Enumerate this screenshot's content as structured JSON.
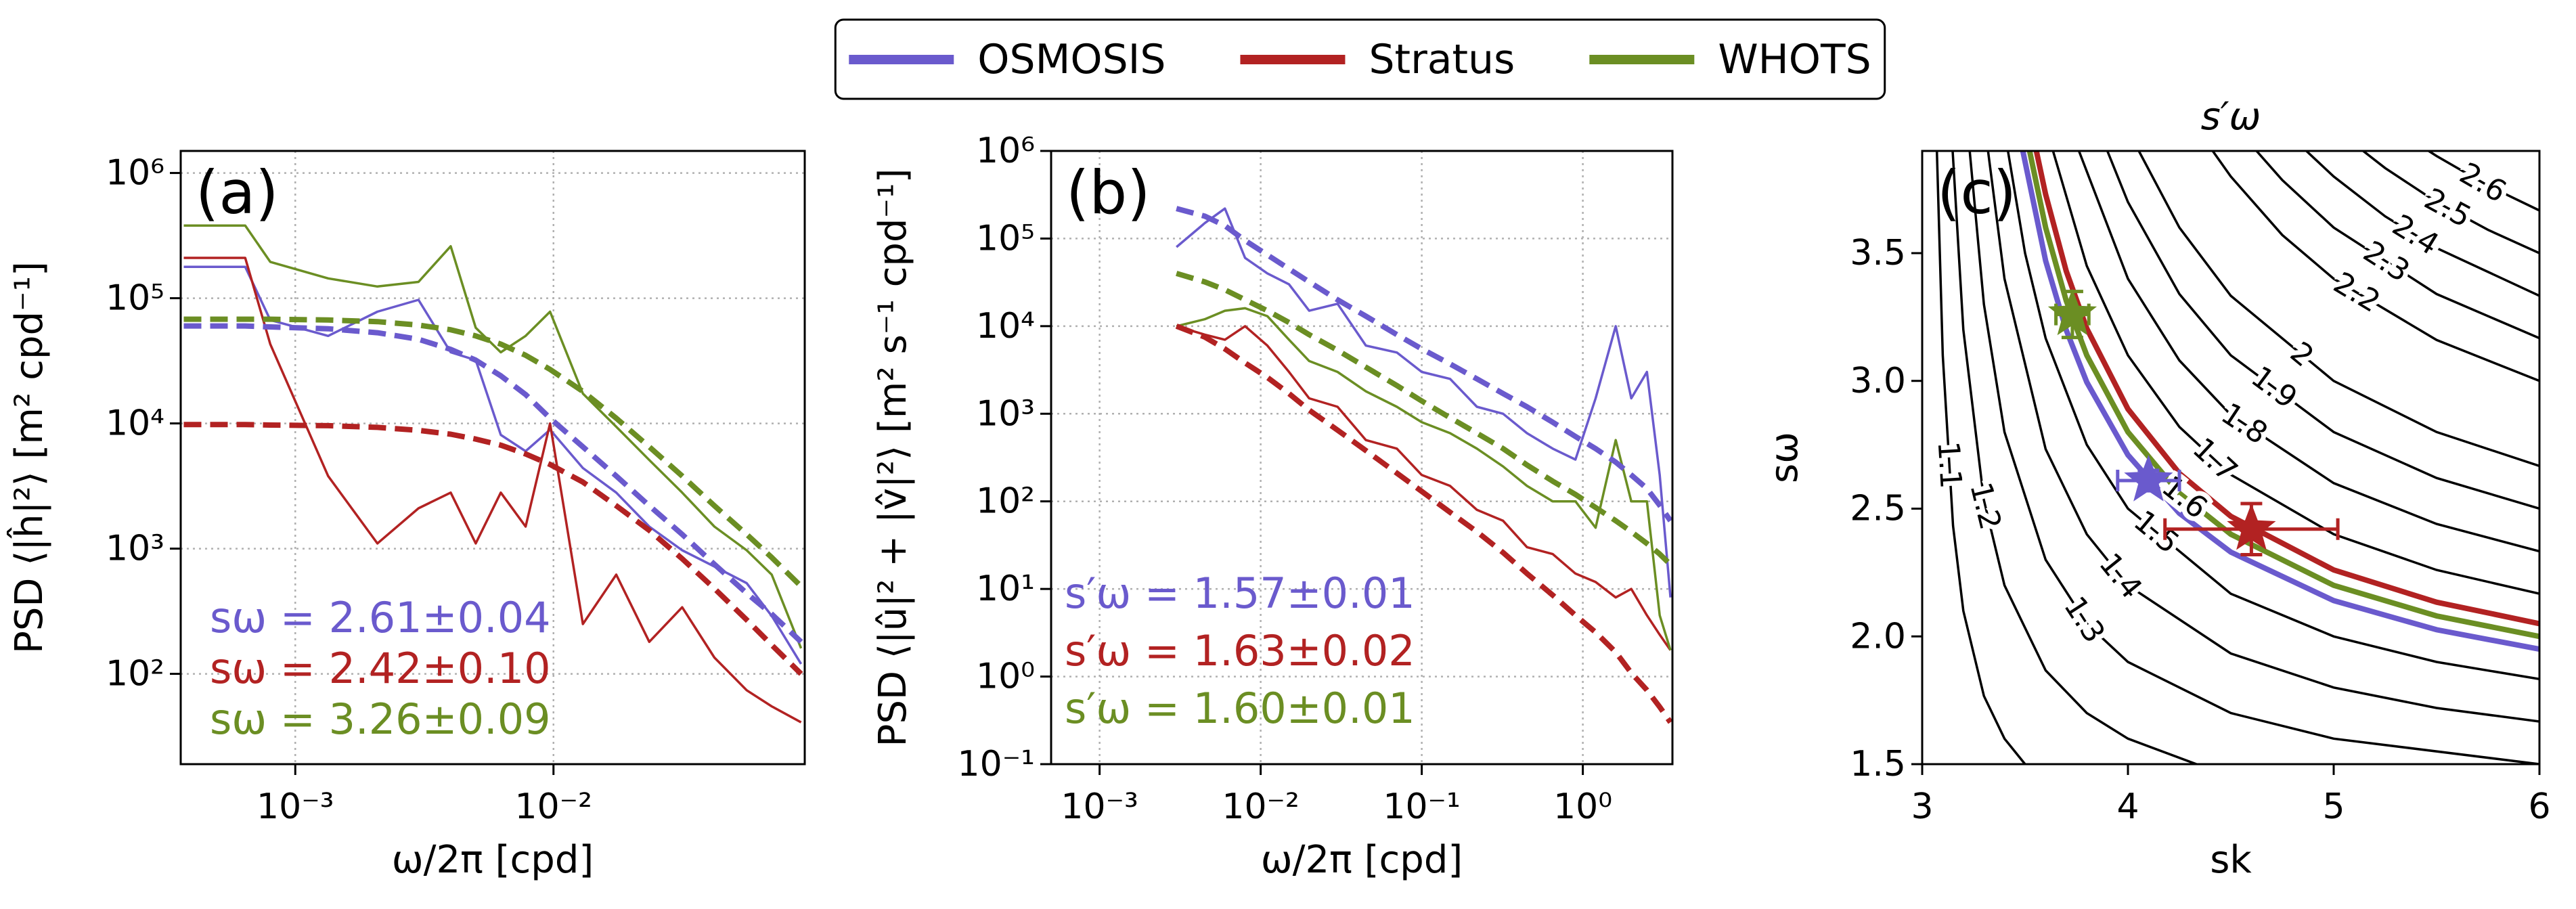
{
  "chart_data": [
    {
      "type": "line",
      "panel_label": "(a)",
      "x_label": "ω/2π [cpd]",
      "y_label": "PSD ⟨|ĥ|²⟩ [m² cpd⁻¹]",
      "xlog": true,
      "ylog": true,
      "grid": true,
      "legend": "upper center",
      "xlim": [
        0.00036,
        0.094
      ],
      "ylim": [
        19,
        1500000
      ],
      "xticks": [
        {
          "value": 0.001,
          "label": "10⁻³"
        },
        {
          "value": 0.01,
          "label": "10⁻²"
        }
      ],
      "yticks": [
        {
          "value": 100,
          "label": "10²"
        },
        {
          "value": 1000,
          "label": "10³"
        },
        {
          "value": 10000,
          "label": "10⁴"
        },
        {
          "value": 100000,
          "label": "10⁵"
        },
        {
          "value": 1000000,
          "label": "10⁶"
        }
      ],
      "x": [
        0.00037,
        0.00064,
        0.0008,
        0.00134,
        0.00208,
        0.003,
        0.004,
        0.005,
        0.00625,
        0.0078,
        0.0097,
        0.013,
        0.0175,
        0.0235,
        0.0315,
        0.042,
        0.056,
        0.07,
        0.091
      ],
      "series": [
        {
          "name": "OSMOSIS",
          "color": "#6a5acd",
          "style": "solid",
          "values": [
            178000.0,
            178000.0,
            67000.0,
            50000.0,
            78000.0,
            97000.0,
            37000.0,
            32000.0,
            8100.0,
            6000.0,
            8900.0,
            4400.0,
            2800.0,
            1500.0,
            970,
            720,
            530,
            290,
            120
          ]
        },
        {
          "name": "Stratus",
          "color": "#b22222",
          "style": "solid",
          "values": [
            210000.0,
            210000.0,
            43000.0,
            3800.0,
            1100.0,
            2100.0,
            2800.0,
            1100.0,
            2800.0,
            1500.0,
            10000.0,
            250,
            620,
            180,
            340,
            135,
            74,
            55,
            41
          ]
        },
        {
          "name": "WHOTS",
          "color": "#6b8e23",
          "style": "solid",
          "values": [
            380000.0,
            380000.0,
            195000.0,
            144000.0,
            124000.0,
            135000.0,
            260000.0,
            58000.0,
            37000.0,
            50000.0,
            78000.0,
            17300.0,
            9400.0,
            5100.0,
            2800.0,
            1500.0,
            970,
            620,
            160
          ]
        },
        {
          "color": "#6a5acd",
          "style": "dashed",
          "values": [
            60000.0,
            60000.0,
            59000.0,
            57000.0,
            53000.0,
            47000.0,
            39000.0,
            32000.0,
            24000.0,
            17000.0,
            11000.0,
            6500.0,
            3800.0,
            2200.0,
            1300.0,
            750,
            440,
            300,
            180
          ]
        },
        {
          "color": "#b22222",
          "style": "dashed",
          "values": [
            9800.0,
            9800.0,
            9700.0,
            9600.0,
            9300.0,
            8800.0,
            8200.0,
            7500.0,
            6700.0,
            5700.0,
            4700.0,
            3400.0,
            2200.0,
            1400.0,
            830,
            480,
            270,
            170,
            100
          ]
        },
        {
          "color": "#6b8e23",
          "style": "dashed",
          "values": [
            68000.0,
            68000.0,
            68000.0,
            67000.0,
            65000.0,
            61000.0,
            56000.0,
            50000.0,
            43000.0,
            35000.0,
            27000.0,
            18000.0,
            11000.0,
            6500.0,
            3800.0,
            2200.0,
            1300.0,
            850,
            500
          ]
        }
      ],
      "annotations": [
        {
          "text": "sω = 2.61±0.04",
          "color": "#6a5acd"
        },
        {
          "text": "sω = 2.42±0.10",
          "color": "#b22222"
        },
        {
          "text": "sω = 3.26±0.09",
          "color": "#6b8e23"
        }
      ]
    },
    {
      "type": "line",
      "panel_label": "(b)",
      "x_label": "ω/2π [cpd]",
      "y_label": "PSD ⟨|û|² + |v̂|²⟩ [m² s⁻¹ cpd⁻¹]",
      "xlog": true,
      "ylog": true,
      "grid": true,
      "xlim": [
        0.0005,
        3.6
      ],
      "ylim": [
        0.1,
        1000000
      ],
      "xticks": [
        {
          "value": 0.001,
          "label": "10⁻³"
        },
        {
          "value": 0.01,
          "label": "10⁻²"
        },
        {
          "value": 0.1,
          "label": "10⁻¹"
        },
        {
          "value": 1,
          "label": "10⁰"
        }
      ],
      "yticks": [
        {
          "value": 0.1,
          "label": "10⁻¹"
        },
        {
          "value": 1,
          "label": "10⁰"
        },
        {
          "value": 10,
          "label": "10¹"
        },
        {
          "value": 100,
          "label": "10²"
        },
        {
          "value": 1000,
          "label": "10³"
        },
        {
          "value": 10000,
          "label": "10⁴"
        },
        {
          "value": 100000,
          "label": "10⁵"
        },
        {
          "value": 1000000,
          "label": "10⁶"
        }
      ],
      "x": [
        0.003,
        0.0045,
        0.006,
        0.008,
        0.011,
        0.015,
        0.02,
        0.03,
        0.045,
        0.07,
        0.1,
        0.15,
        0.22,
        0.32,
        0.45,
        0.65,
        0.9,
        1.2,
        1.6,
        2.0,
        2.5,
        3.0,
        3.5
      ],
      "series": [
        {
          "color": "#6a5acd",
          "style": "solid",
          "values": [
            80000.0,
            150000.0,
            220000.0,
            60000.0,
            40000.0,
            30000.0,
            15000.0,
            18000.0,
            6000.0,
            5000.0,
            3000.0,
            2500.0,
            1200.0,
            1000.0,
            600,
            400,
            300,
            1500.0,
            10000.0,
            1500.0,
            3000.0,
            200,
            8
          ]
        },
        {
          "color": "#b22222",
          "style": "solid",
          "values": [
            10000.0,
            8000.0,
            7000.0,
            10000.0,
            6000.0,
            3000.0,
            1500.0,
            1200.0,
            500,
            400,
            200,
            150,
            80,
            60,
            30,
            25,
            15,
            12,
            8,
            10,
            5,
            3,
            2
          ]
        },
        {
          "color": "#6b8e23",
          "style": "solid",
          "values": [
            10000.0,
            12000.0,
            15000.0,
            16000.0,
            13000.0,
            7000.0,
            4000.0,
            3000.0,
            1800.0,
            1200.0,
            800,
            600,
            400,
            250,
            150,
            100,
            100,
            50,
            500,
            100,
            100,
            5,
            2
          ]
        },
        {
          "color": "#6a5acd",
          "style": "dashed",
          "values": [
            220000.0,
            180000.0,
            140000.0,
            95000.0,
            65000.0,
            45000.0,
            32000.0,
            20000.0,
            13000.0,
            8000.0,
            5500.0,
            3700.0,
            2500.0,
            1700.0,
            1200.0,
            800,
            550,
            400,
            280,
            200,
            140,
            90,
            60
          ]
        },
        {
          "color": "#b22222",
          "style": "dashed",
          "values": [
            10000.0,
            7500.0,
            5500.0,
            3800.0,
            2600.0,
            1700.0,
            1100.0,
            650,
            380,
            210,
            130,
            75,
            45,
            26,
            15,
            8.5,
            5,
            3.2,
            1.9,
            1.1,
            0.7,
            0.45,
            0.3
          ]
        },
        {
          "color": "#6b8e23",
          "style": "dashed",
          "values": [
            40000.0,
            32000.0,
            26000.0,
            20000.0,
            15000.0,
            11000.0,
            8000.0,
            5300.0,
            3400.0,
            2100.0,
            1400.0,
            900,
            600,
            400,
            260,
            170,
            120,
            85,
            60,
            45,
            33,
            25,
            19
          ]
        }
      ],
      "annotations": [
        {
          "text": "s′ω = 1.57±0.01",
          "color": "#6a5acd"
        },
        {
          "text": "s′ω = 1.63±0.02",
          "color": "#b22222"
        },
        {
          "text": "s′ω = 1.60±0.01",
          "color": "#6b8e23"
        }
      ]
    },
    {
      "type": "contour",
      "panel_label": "(c)",
      "title": "s′ω",
      "x_label": "sk",
      "y_label": "sω",
      "xlim": [
        3,
        6
      ],
      "ylim": [
        1.5,
        3.9
      ],
      "xticks": [
        3,
        4,
        5,
        6
      ],
      "yticks": [
        1.5,
        {
          "value": 2,
          "label": "2.0"
        },
        2.5,
        {
          "value": 3,
          "label": "3.0"
        },
        3.5
      ],
      "contours": [
        {
          "level": 1.1,
          "x": [
            3.0714,
            3.1,
            3.15,
            3.2,
            3.3,
            3.4,
            3.5
          ],
          "y": [
            3.9,
            3.1,
            2.433,
            2.1,
            1.767,
            1.6,
            1.5
          ]
        },
        {
          "level": 1.2,
          "x": [
            3.148,
            3.2,
            3.3,
            3.4,
            3.6,
            3.8,
            4.0,
            4.333
          ],
          "y": [
            3.9,
            3.2,
            2.533,
            2.2,
            1.867,
            1.7,
            1.6,
            1.5
          ]
        },
        {
          "level": 1.3,
          "x": [
            3.2308,
            3.3,
            3.4,
            3.6,
            3.8,
            4.0,
            4.5,
            5.0,
            6.0
          ],
          "y": [
            3.9,
            3.3,
            2.8,
            2.3,
            2.05,
            1.9,
            1.7,
            1.6,
            1.5
          ]
        },
        {
          "level": 1.4,
          "x": [
            3.32,
            3.4,
            3.6,
            3.8,
            4.0,
            4.5,
            5.0,
            5.5,
            6.0
          ],
          "y": [
            3.9,
            3.4,
            2.733,
            2.4,
            2.2,
            1.933,
            1.8,
            1.72,
            1.667
          ]
        },
        {
          "level": 1.5,
          "x": [
            3.4167,
            3.5,
            3.6,
            3.8,
            4.0,
            4.5,
            5.0,
            5.5,
            6.0
          ],
          "y": [
            3.9,
            3.5,
            3.167,
            2.75,
            2.5,
            2.167,
            2.0,
            1.9,
            1.833
          ]
        },
        {
          "level": 1.6,
          "x": [
            3.522,
            3.6,
            3.7,
            3.8,
            4.0,
            4.25,
            4.5,
            5.0,
            5.5,
            6.0
          ],
          "y": [
            3.9,
            3.6,
            3.314,
            3.1,
            2.8,
            2.56,
            2.4,
            2.2,
            2.08,
            2.0
          ]
        },
        {
          "level": 1.7,
          "x": [
            3.636,
            3.8,
            4.0,
            4.25,
            4.5,
            5.0,
            5.5,
            6.0
          ],
          "y": [
            3.9,
            3.45,
            3.1,
            2.82,
            2.633,
            2.4,
            2.26,
            2.167
          ]
        },
        {
          "level": 1.8,
          "x": [
            3.762,
            4.0,
            4.25,
            4.5,
            5.0,
            5.5,
            6.0
          ],
          "y": [
            3.9,
            3.4,
            3.08,
            2.867,
            2.6,
            2.44,
            2.333
          ]
        },
        {
          "level": 1.9,
          "x": [
            3.9,
            4.0,
            4.25,
            4.5,
            5.0,
            5.5,
            6.0
          ],
          "y": [
            3.9,
            3.7,
            3.34,
            3.1,
            2.8,
            2.62,
            2.5
          ]
        },
        {
          "level": 2.0,
          "x": [
            4.053,
            4.25,
            4.5,
            5.0,
            5.5,
            6.0
          ],
          "y": [
            3.9,
            3.6,
            3.333,
            3.0,
            2.8,
            2.667
          ]
        },
        {
          "level": 2.2,
          "x": [
            4.412,
            4.5,
            4.75,
            5.0,
            5.5,
            6.0
          ],
          "y": [
            3.9,
            3.8,
            3.571,
            3.4,
            3.16,
            3.0
          ]
        },
        {
          "level": 2.3,
          "x": [
            4.625,
            4.75,
            5.0,
            5.5,
            6.0
          ],
          "y": [
            3.9,
            3.786,
            3.6,
            3.34,
            3.167
          ]
        },
        {
          "level": 2.4,
          "x": [
            4.867,
            5.0,
            5.25,
            5.5,
            6.0
          ],
          "y": [
            3.9,
            3.8,
            3.644,
            3.52,
            3.333
          ]
        },
        {
          "level": 2.5,
          "x": [
            5.143,
            5.25,
            5.5,
            5.75,
            6.0
          ],
          "y": [
            3.9,
            3.833,
            3.7,
            3.591,
            3.5
          ]
        },
        {
          "level": 2.6,
          "x": [
            5.4615,
            5.5,
            5.75,
            6.0
          ],
          "y": [
            3.9,
            3.88,
            3.764,
            3.667
          ]
        }
      ],
      "series": [
        {
          "color": "#6a5acd",
          "x": [
            3.489,
            3.6,
            3.7,
            3.8,
            4.0,
            4.25,
            4.5,
            5.0,
            5.5,
            6.0
          ],
          "y": [
            3.9,
            3.47,
            3.199,
            2.995,
            2.71,
            2.482,
            2.33,
            2.14,
            2.026,
            1.95
          ]
        },
        {
          "color": "#b22222",
          "x": [
            3.555,
            3.6,
            3.7,
            3.8,
            4.0,
            4.25,
            4.5,
            5.0,
            5.5,
            6.0
          ],
          "y": [
            3.9,
            3.73,
            3.43,
            3.205,
            2.89,
            2.638,
            2.47,
            2.26,
            2.134,
            2.05
          ]
        },
        {
          "color": "#6b8e23",
          "x": [
            3.522,
            3.6,
            3.7,
            3.8,
            4.0,
            4.25,
            4.5,
            5.0,
            5.5,
            6.0
          ],
          "y": [
            3.9,
            3.6,
            3.314,
            3.1,
            2.8,
            2.56,
            2.4,
            2.2,
            2.08,
            2.0
          ]
        }
      ],
      "points": [
        {
          "color": "#6a5acd",
          "x": 4.1,
          "y": 2.61,
          "xerr": 0.15,
          "yerr": 0.04
        },
        {
          "color": "#b22222",
          "x": 4.6,
          "y": 2.42,
          "xerr": 0.42,
          "yerr": 0.1
        },
        {
          "color": "#6b8e23",
          "x": 3.73,
          "y": 3.26,
          "xerr": 0.08,
          "yerr": 0.09
        }
      ]
    }
  ]
}
